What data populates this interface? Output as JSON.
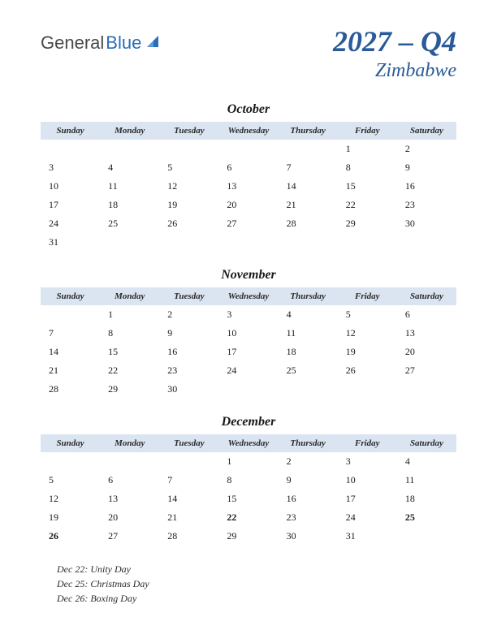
{
  "logo": {
    "part1": "General",
    "part2": "Blue"
  },
  "title": {
    "yearQuarter": "2027 – Q4",
    "country": "Zimbabwe"
  },
  "dayHeaders": [
    "Sunday",
    "Monday",
    "Tuesday",
    "Wednesday",
    "Thursday",
    "Friday",
    "Saturday"
  ],
  "colors": {
    "headerBg": "#dbe5f1",
    "titleColor": "#2a5a9a",
    "holidayColor": "#c02a2a",
    "textColor": "#1a1a1a"
  },
  "months": [
    {
      "name": "October",
      "weeks": [
        [
          "",
          "",
          "",
          "",
          "",
          "1",
          "2"
        ],
        [
          "3",
          "4",
          "5",
          "6",
          "7",
          "8",
          "9"
        ],
        [
          "10",
          "11",
          "12",
          "13",
          "14",
          "15",
          "16"
        ],
        [
          "17",
          "18",
          "19",
          "20",
          "21",
          "22",
          "23"
        ],
        [
          "24",
          "25",
          "26",
          "27",
          "28",
          "29",
          "30"
        ],
        [
          "31",
          "",
          "",
          "",
          "",
          "",
          ""
        ]
      ],
      "holidays": []
    },
    {
      "name": "November",
      "weeks": [
        [
          "",
          "1",
          "2",
          "3",
          "4",
          "5",
          "6"
        ],
        [
          "7",
          "8",
          "9",
          "10",
          "11",
          "12",
          "13"
        ],
        [
          "14",
          "15",
          "16",
          "17",
          "18",
          "19",
          "20"
        ],
        [
          "21",
          "22",
          "23",
          "24",
          "25",
          "26",
          "27"
        ],
        [
          "28",
          "29",
          "30",
          "",
          "",
          "",
          ""
        ]
      ],
      "holidays": []
    },
    {
      "name": "December",
      "weeks": [
        [
          "",
          "",
          "",
          "1",
          "2",
          "3",
          "4"
        ],
        [
          "5",
          "6",
          "7",
          "8",
          "9",
          "10",
          "11"
        ],
        [
          "12",
          "13",
          "14",
          "15",
          "16",
          "17",
          "18"
        ],
        [
          "19",
          "20",
          "21",
          "22",
          "23",
          "24",
          "25"
        ],
        [
          "26",
          "27",
          "28",
          "29",
          "30",
          "31",
          ""
        ]
      ],
      "holidays": [
        "22",
        "25",
        "26"
      ]
    }
  ],
  "holidayList": [
    "Dec 22: Unity Day",
    "Dec 25: Christmas Day",
    "Dec 26: Boxing Day"
  ]
}
